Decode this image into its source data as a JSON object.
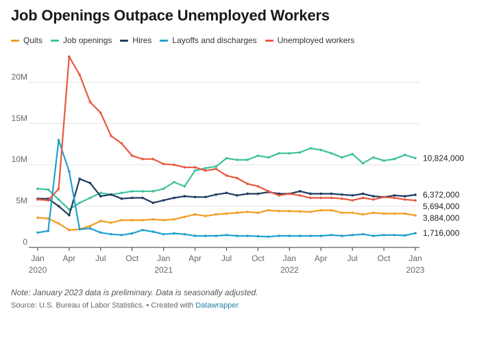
{
  "chart_data": {
    "type": "line",
    "title": "Job Openings Outpace Unemployed Workers",
    "note": "Note: January 2023 data is preliminary. Data is seasonally adjusted.",
    "source_prefix": "Source: U.S. Bureau of Labor Statistics. • Created with",
    "source_link": "Datawrapper",
    "ylim": [
      0,
      24
    ],
    "y_ticks": [
      {
        "value": 0,
        "label": "0"
      },
      {
        "value": 5,
        "label": "5M"
      },
      {
        "value": 10,
        "label": "10M"
      },
      {
        "value": 15,
        "label": "15M"
      },
      {
        "value": 20,
        "label": "20M"
      }
    ],
    "x_ticks": [
      {
        "index": 0,
        "month": "Jan",
        "year": "2020"
      },
      {
        "index": 3,
        "month": "Apr",
        "year": ""
      },
      {
        "index": 6,
        "month": "Jul",
        "year": ""
      },
      {
        "index": 9,
        "month": "Oct",
        "year": ""
      },
      {
        "index": 12,
        "month": "Jan",
        "year": "2021"
      },
      {
        "index": 15,
        "month": "Apr",
        "year": ""
      },
      {
        "index": 18,
        "month": "Jul",
        "year": ""
      },
      {
        "index": 21,
        "month": "Oct",
        "year": ""
      },
      {
        "index": 24,
        "month": "Jan",
        "year": "2022"
      },
      {
        "index": 27,
        "month": "Apr",
        "year": ""
      },
      {
        "index": 30,
        "month": "Jul",
        "year": ""
      },
      {
        "index": 33,
        "month": "Oct",
        "year": ""
      },
      {
        "index": 36,
        "month": "Jan",
        "year": "2023"
      }
    ],
    "series": [
      {
        "name": "Quits",
        "key": "quits",
        "color": "#f29c1f",
        "end_label": "3,884,000",
        "values": [
          3.6,
          3.5,
          2.9,
          2.1,
          2.2,
          2.6,
          3.2,
          3.0,
          3.3,
          3.3,
          3.3,
          3.4,
          3.3,
          3.4,
          3.7,
          4.0,
          3.8,
          4.0,
          4.1,
          4.2,
          4.3,
          4.2,
          4.5,
          4.4,
          4.4,
          4.35,
          4.3,
          4.5,
          4.5,
          4.2,
          4.2,
          4.0,
          4.2,
          4.1,
          4.1,
          4.1,
          3.88
        ]
      },
      {
        "name": "Job openings",
        "key": "openings",
        "color": "#3cc19e",
        "end_label": "10,824,000",
        "values": [
          7.1,
          7.0,
          5.8,
          4.6,
          5.4,
          6.0,
          6.6,
          6.4,
          6.6,
          6.8,
          6.8,
          6.8,
          7.1,
          7.9,
          7.4,
          9.3,
          9.6,
          9.8,
          10.8,
          10.6,
          10.6,
          11.1,
          10.9,
          11.4,
          11.4,
          11.5,
          12.0,
          11.8,
          11.4,
          10.9,
          11.3,
          10.2,
          10.9,
          10.5,
          10.7,
          11.2,
          10.82
        ]
      },
      {
        "name": "Hires",
        "key": "hires",
        "color": "#1f3a5f",
        "end_label": "6,372,000",
        "values": [
          5.9,
          5.9,
          5.0,
          3.9,
          8.3,
          7.8,
          6.2,
          6.4,
          5.9,
          6.0,
          6.0,
          5.4,
          5.7,
          6.0,
          6.2,
          6.1,
          6.1,
          6.4,
          6.6,
          6.3,
          6.5,
          6.5,
          6.7,
          6.5,
          6.5,
          6.8,
          6.5,
          6.5,
          6.5,
          6.4,
          6.3,
          6.5,
          6.2,
          6.1,
          6.3,
          6.2,
          6.37
        ]
      },
      {
        "name": "Layoffs and discharges",
        "key": "layoffs",
        "color": "#1fa0d0",
        "end_label": "1,716,000",
        "values": [
          1.8,
          2.0,
          13.0,
          9.2,
          2.2,
          2.3,
          1.8,
          1.6,
          1.5,
          1.7,
          2.1,
          1.9,
          1.6,
          1.7,
          1.6,
          1.4,
          1.4,
          1.4,
          1.5,
          1.4,
          1.4,
          1.35,
          1.3,
          1.4,
          1.4,
          1.4,
          1.4,
          1.4,
          1.5,
          1.4,
          1.5,
          1.6,
          1.4,
          1.5,
          1.5,
          1.45,
          1.72
        ]
      },
      {
        "name": "Unemployed workers",
        "key": "unemployed",
        "color": "#e8583f",
        "end_label": "5,694,000",
        "values": [
          5.8,
          5.7,
          7.1,
          23.1,
          20.9,
          17.6,
          16.3,
          13.5,
          12.6,
          11.1,
          10.7,
          10.7,
          10.1,
          10.0,
          9.7,
          9.7,
          9.3,
          9.5,
          8.7,
          8.4,
          7.7,
          7.4,
          6.8,
          6.3,
          6.5,
          6.3,
          6.0,
          6.0,
          6.0,
          5.9,
          5.7,
          6.0,
          5.8,
          6.1,
          6.0,
          5.8,
          5.69
        ]
      }
    ]
  }
}
